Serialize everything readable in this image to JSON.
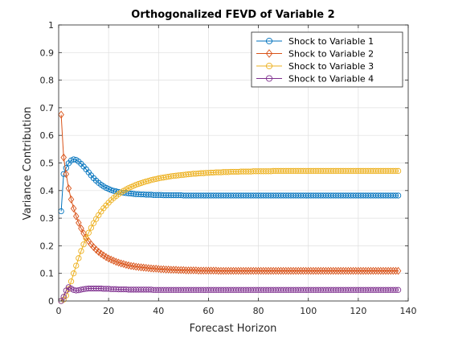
{
  "chart_data": {
    "type": "line",
    "title": "Orthogonalized FEVD of Variable 2",
    "xlabel": "Forecast Horizon",
    "ylabel": "Variance Contribution",
    "xlim": [
      0,
      140
    ],
    "ylim": [
      0,
      1
    ],
    "xticks": [
      0,
      20,
      40,
      60,
      80,
      100,
      120,
      140
    ],
    "yticks": [
      0,
      0.1,
      0.2,
      0.3,
      0.4,
      0.5,
      0.6,
      0.7,
      0.8,
      0.9,
      1
    ],
    "grid": true,
    "legend_position": "top-right",
    "x": [
      1,
      2,
      3,
      4,
      5,
      6,
      7,
      8,
      9,
      10,
      11,
      12,
      13,
      14,
      15,
      16,
      17,
      18,
      19,
      20,
      21,
      22,
      23,
      24,
      25,
      26,
      27,
      28,
      29,
      30,
      31,
      32,
      33,
      34,
      35,
      36,
      37,
      38,
      39,
      40,
      41,
      42,
      43,
      44,
      45,
      46,
      47,
      48,
      49,
      50,
      51,
      52,
      53,
      54,
      55,
      56,
      57,
      58,
      59,
      60,
      61,
      62,
      63,
      64,
      65,
      66,
      67,
      68,
      69,
      70,
      71,
      72,
      73,
      74,
      75,
      76,
      77,
      78,
      79,
      80,
      81,
      82,
      83,
      84,
      85,
      86,
      87,
      88,
      89,
      90,
      91,
      92,
      93,
      94,
      95,
      96,
      97,
      98,
      99,
      100,
      101,
      102,
      103,
      104,
      105,
      106,
      107,
      108,
      109,
      110,
      111,
      112,
      113,
      114,
      115,
      116,
      117,
      118,
      119,
      120,
      121,
      122,
      123,
      124,
      125,
      126,
      127,
      128,
      129,
      130,
      131,
      132,
      133,
      134,
      135,
      136
    ],
    "series": [
      {
        "name": "Shock to Variable 1",
        "color": "#0072BD",
        "marker": "circle",
        "values": [
          0.325,
          0.46,
          0.482,
          0.499,
          0.509,
          0.513,
          0.511,
          0.505,
          0.497,
          0.487,
          0.477,
          0.466,
          0.455,
          0.445,
          0.436,
          0.428,
          0.421,
          0.415,
          0.41,
          0.406,
          0.402,
          0.399,
          0.397,
          0.395,
          0.393,
          0.392,
          0.391,
          0.39,
          0.389,
          0.388,
          0.387,
          0.387,
          0.386,
          0.386,
          0.385,
          0.385,
          0.385,
          0.384,
          0.384,
          0.384,
          0.384,
          0.383,
          0.383,
          0.383,
          0.383,
          0.383,
          0.383,
          0.383,
          0.383,
          0.382,
          0.382,
          0.382,
          0.382,
          0.382,
          0.382,
          0.382,
          0.382,
          0.382,
          0.382,
          0.382,
          0.382,
          0.382,
          0.382,
          0.382,
          0.382,
          0.382,
          0.382,
          0.382,
          0.382,
          0.382,
          0.382,
          0.382,
          0.382,
          0.382,
          0.382,
          0.382,
          0.382,
          0.382,
          0.382,
          0.382,
          0.382,
          0.382,
          0.382,
          0.382,
          0.382,
          0.382,
          0.382,
          0.382,
          0.382,
          0.382,
          0.382,
          0.382,
          0.382,
          0.382,
          0.382,
          0.382,
          0.382,
          0.382,
          0.382,
          0.382,
          0.382,
          0.382,
          0.382,
          0.382,
          0.382,
          0.382,
          0.382,
          0.382,
          0.382,
          0.382,
          0.382,
          0.382,
          0.382,
          0.382,
          0.382,
          0.382,
          0.382,
          0.382,
          0.382,
          0.382,
          0.382,
          0.382,
          0.382,
          0.382,
          0.382,
          0.382,
          0.382,
          0.382,
          0.382,
          0.382,
          0.382,
          0.382,
          0.382,
          0.382,
          0.382,
          0.382
        ]
      },
      {
        "name": "Shock to Variable 2",
        "color": "#D95319",
        "marker": "diamond",
        "values": [
          0.675,
          0.52,
          0.46,
          0.408,
          0.368,
          0.335,
          0.307,
          0.283,
          0.263,
          0.245,
          0.23,
          0.217,
          0.205,
          0.195,
          0.186,
          0.178,
          0.171,
          0.165,
          0.159,
          0.154,
          0.15,
          0.146,
          0.142,
          0.139,
          0.136,
          0.134,
          0.131,
          0.129,
          0.127,
          0.126,
          0.124,
          0.123,
          0.122,
          0.121,
          0.12,
          0.119,
          0.118,
          0.117,
          0.117,
          0.116,
          0.115,
          0.115,
          0.114,
          0.114,
          0.113,
          0.113,
          0.113,
          0.112,
          0.112,
          0.112,
          0.111,
          0.111,
          0.111,
          0.111,
          0.111,
          0.11,
          0.11,
          0.11,
          0.11,
          0.11,
          0.11,
          0.11,
          0.11,
          0.109,
          0.109,
          0.109,
          0.109,
          0.109,
          0.109,
          0.109,
          0.109,
          0.109,
          0.109,
          0.109,
          0.109,
          0.109,
          0.109,
          0.109,
          0.109,
          0.109,
          0.109,
          0.109,
          0.109,
          0.109,
          0.109,
          0.109,
          0.109,
          0.109,
          0.109,
          0.109,
          0.109,
          0.109,
          0.109,
          0.109,
          0.109,
          0.109,
          0.109,
          0.109,
          0.109,
          0.109,
          0.109,
          0.109,
          0.109,
          0.109,
          0.109,
          0.109,
          0.109,
          0.109,
          0.109,
          0.109,
          0.109,
          0.109,
          0.109,
          0.109,
          0.109,
          0.109,
          0.109,
          0.109,
          0.109,
          0.109,
          0.109,
          0.109,
          0.109,
          0.109,
          0.109,
          0.109,
          0.109,
          0.109,
          0.109,
          0.109,
          0.109,
          0.109,
          0.109,
          0.109,
          0.109,
          0.109
        ]
      },
      {
        "name": "Shock to Variable 3",
        "color": "#EDB120",
        "marker": "circle",
        "values": [
          0.0,
          0.005,
          0.02,
          0.043,
          0.071,
          0.1,
          0.128,
          0.155,
          0.181,
          0.205,
          0.227,
          0.247,
          0.265,
          0.282,
          0.297,
          0.311,
          0.324,
          0.336,
          0.346,
          0.356,
          0.365,
          0.373,
          0.38,
          0.387,
          0.393,
          0.399,
          0.404,
          0.409,
          0.413,
          0.417,
          0.421,
          0.424,
          0.427,
          0.43,
          0.433,
          0.435,
          0.438,
          0.44,
          0.442,
          0.444,
          0.446,
          0.447,
          0.449,
          0.45,
          0.452,
          0.453,
          0.454,
          0.455,
          0.456,
          0.457,
          0.458,
          0.459,
          0.46,
          0.461,
          0.461,
          0.462,
          0.463,
          0.463,
          0.464,
          0.464,
          0.465,
          0.465,
          0.466,
          0.466,
          0.466,
          0.467,
          0.467,
          0.467,
          0.468,
          0.468,
          0.468,
          0.468,
          0.469,
          0.469,
          0.469,
          0.469,
          0.469,
          0.47,
          0.47,
          0.47,
          0.47,
          0.47,
          0.47,
          0.47,
          0.47,
          0.471,
          0.471,
          0.471,
          0.471,
          0.471,
          0.471,
          0.471,
          0.471,
          0.471,
          0.471,
          0.471,
          0.471,
          0.471,
          0.471,
          0.471,
          0.471,
          0.471,
          0.471,
          0.471,
          0.471,
          0.471,
          0.471,
          0.471,
          0.471,
          0.471,
          0.471,
          0.471,
          0.471,
          0.471,
          0.471,
          0.471,
          0.471,
          0.471,
          0.471,
          0.471,
          0.471,
          0.471,
          0.471,
          0.471,
          0.471,
          0.471,
          0.471,
          0.471,
          0.471,
          0.471,
          0.471,
          0.471,
          0.471,
          0.471,
          0.471,
          0.471
        ]
      },
      {
        "name": "Shock to Variable 4",
        "color": "#7E2F8E",
        "marker": "circle",
        "values": [
          0.0,
          0.015,
          0.038,
          0.05,
          0.045,
          0.04,
          0.038,
          0.039,
          0.041,
          0.043,
          0.044,
          0.045,
          0.045,
          0.045,
          0.045,
          0.045,
          0.045,
          0.044,
          0.044,
          0.044,
          0.043,
          0.043,
          0.043,
          0.042,
          0.042,
          0.042,
          0.042,
          0.041,
          0.041,
          0.041,
          0.041,
          0.041,
          0.041,
          0.041,
          0.041,
          0.041,
          0.041,
          0.04,
          0.04,
          0.04,
          0.04,
          0.04,
          0.04,
          0.04,
          0.04,
          0.04,
          0.04,
          0.04,
          0.04,
          0.04,
          0.04,
          0.04,
          0.04,
          0.04,
          0.04,
          0.04,
          0.04,
          0.04,
          0.04,
          0.04,
          0.04,
          0.04,
          0.04,
          0.04,
          0.04,
          0.04,
          0.04,
          0.04,
          0.04,
          0.04,
          0.04,
          0.04,
          0.04,
          0.04,
          0.04,
          0.04,
          0.04,
          0.04,
          0.04,
          0.04,
          0.04,
          0.04,
          0.04,
          0.04,
          0.04,
          0.04,
          0.04,
          0.04,
          0.04,
          0.04,
          0.04,
          0.04,
          0.04,
          0.04,
          0.04,
          0.04,
          0.04,
          0.04,
          0.04,
          0.04,
          0.04,
          0.04,
          0.04,
          0.04,
          0.04,
          0.04,
          0.04,
          0.04,
          0.04,
          0.04,
          0.04,
          0.04,
          0.04,
          0.04,
          0.04,
          0.04,
          0.04,
          0.04,
          0.04,
          0.04,
          0.04,
          0.04,
          0.04,
          0.04,
          0.04,
          0.04,
          0.04,
          0.04,
          0.04,
          0.04,
          0.04,
          0.04,
          0.04,
          0.04,
          0.04,
          0.04
        ]
      }
    ]
  }
}
